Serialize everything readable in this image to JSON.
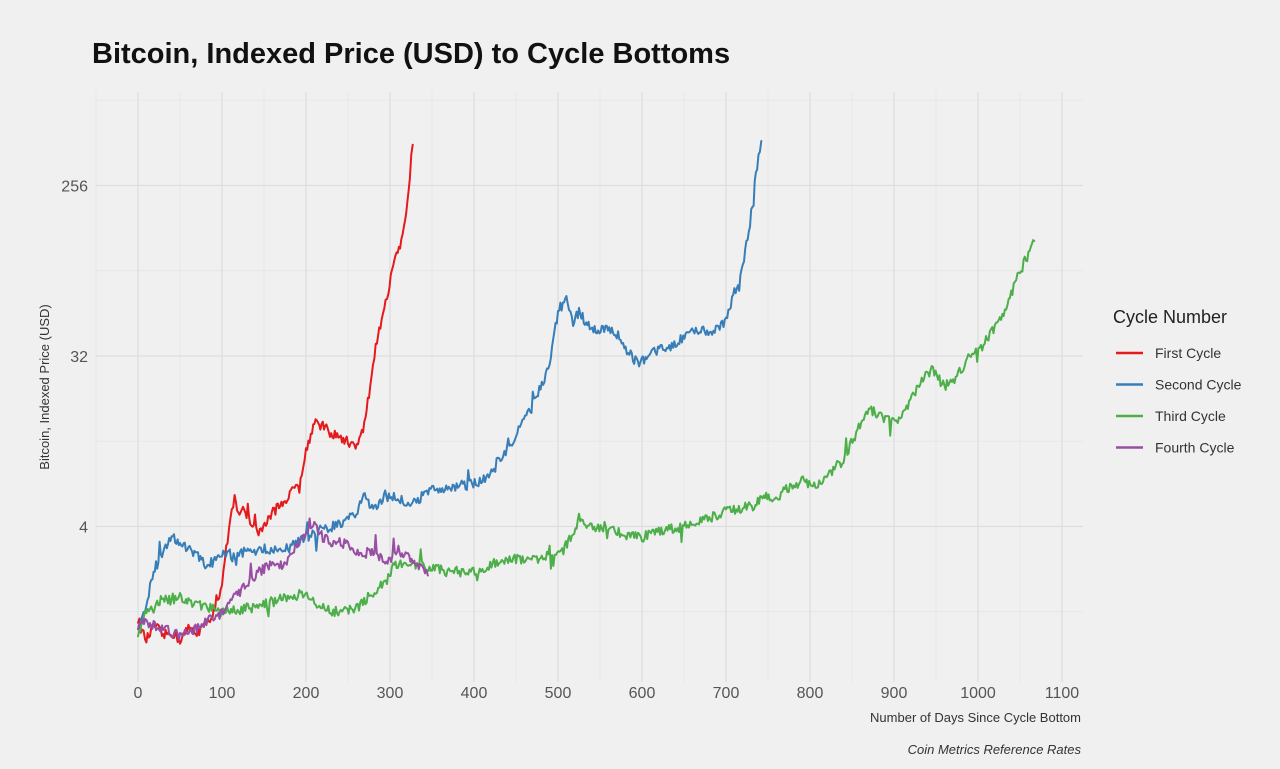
{
  "chart_data": {
    "type": "line",
    "title": "Bitcoin, Indexed Price (USD) to Cycle Bottoms",
    "xlabel": "Number of Days Since Cycle Bottom",
    "ylabel": "Bitcoin, Indexed Price (USD)",
    "caption": "Coin Metrics Reference Rates",
    "x_ticks": [
      0,
      100,
      200,
      300,
      400,
      500,
      600,
      700,
      800,
      900,
      1000,
      1100
    ],
    "y_ticks": [
      4,
      32,
      256
    ],
    "y_scale": "log2",
    "xlim": [
      -50,
      1125
    ],
    "ylim": [
      0.6,
      800
    ],
    "grid": true,
    "legend": {
      "title": "Cycle Number",
      "position": "right"
    },
    "series": [
      {
        "name": "First Cycle",
        "color": "#e41a1c",
        "points": [
          [
            0,
            1.3
          ],
          [
            5,
            1.1
          ],
          [
            10,
            1.0
          ],
          [
            20,
            1.2
          ],
          [
            30,
            1.05
          ],
          [
            40,
            1.1
          ],
          [
            50,
            1.0
          ],
          [
            60,
            1.15
          ],
          [
            70,
            1.1
          ],
          [
            80,
            1.2
          ],
          [
            90,
            1.4
          ],
          [
            95,
            1.6
          ],
          [
            100,
            2.0
          ],
          [
            105,
            3.0
          ],
          [
            110,
            4.3
          ],
          [
            115,
            6.0
          ],
          [
            118,
            4.6
          ],
          [
            125,
            5.2
          ],
          [
            135,
            4.0
          ],
          [
            145,
            3.7
          ],
          [
            155,
            4.4
          ],
          [
            165,
            5.0
          ],
          [
            175,
            5.5
          ],
          [
            185,
            6.2
          ],
          [
            195,
            7.5
          ],
          [
            200,
            10.0
          ],
          [
            210,
            14.5
          ],
          [
            220,
            13.5
          ],
          [
            230,
            12.5
          ],
          [
            240,
            11.8
          ],
          [
            250,
            11.2
          ],
          [
            262,
            10.8
          ],
          [
            268,
            13.0
          ],
          [
            275,
            20.0
          ],
          [
            283,
            36.0
          ],
          [
            290,
            48.0
          ],
          [
            298,
            70.0
          ],
          [
            305,
            100.0
          ],
          [
            312,
            118.0
          ],
          [
            318,
            160.0
          ],
          [
            322,
            250.0
          ],
          [
            327,
            420.0
          ]
        ]
      },
      {
        "name": "Second Cycle",
        "color": "#377eb8",
        "points": [
          [
            0,
            1.2
          ],
          [
            5,
            1.3
          ],
          [
            10,
            1.6
          ],
          [
            20,
            2.4
          ],
          [
            30,
            3.0
          ],
          [
            40,
            3.6
          ],
          [
            50,
            3.3
          ],
          [
            60,
            3.0
          ],
          [
            70,
            2.8
          ],
          [
            80,
            2.5
          ],
          [
            90,
            2.6
          ],
          [
            100,
            2.8
          ],
          [
            120,
            2.9
          ],
          [
            140,
            3.0
          ],
          [
            160,
            3.0
          ],
          [
            180,
            3.1
          ],
          [
            200,
            3.5
          ],
          [
            220,
            3.9
          ],
          [
            240,
            4.1
          ],
          [
            260,
            4.6
          ],
          [
            270,
            5.8
          ],
          [
            280,
            5.0
          ],
          [
            290,
            5.6
          ],
          [
            300,
            5.8
          ],
          [
            320,
            5.4
          ],
          [
            330,
            5.5
          ],
          [
            350,
            6.2
          ],
          [
            370,
            6.5
          ],
          [
            390,
            6.6
          ],
          [
            410,
            7.0
          ],
          [
            430,
            9.0
          ],
          [
            450,
            12.0
          ],
          [
            470,
            18.0
          ],
          [
            490,
            28.0
          ],
          [
            500,
            55.0
          ],
          [
            510,
            65.0
          ],
          [
            518,
            48.0
          ],
          [
            525,
            55.0
          ],
          [
            535,
            46.0
          ],
          [
            545,
            44.0
          ],
          [
            555,
            44.0
          ],
          [
            570,
            42.0
          ],
          [
            585,
            33.0
          ],
          [
            595,
            29.0
          ],
          [
            610,
            33.0
          ],
          [
            625,
            35.0
          ],
          [
            640,
            37.0
          ],
          [
            655,
            42.0
          ],
          [
            670,
            44.0
          ],
          [
            685,
            43.0
          ],
          [
            700,
            48.0
          ],
          [
            710,
            70.0
          ],
          [
            720,
            95.0
          ],
          [
            730,
            180.0
          ],
          [
            737,
            320.0
          ],
          [
            742,
            440.0
          ]
        ]
      },
      {
        "name": "Third Cycle",
        "color": "#4daf4a",
        "points": [
          [
            0,
            1.1
          ],
          [
            10,
            1.4
          ],
          [
            20,
            1.5
          ],
          [
            30,
            1.7
          ],
          [
            40,
            1.6
          ],
          [
            50,
            1.7
          ],
          [
            60,
            1.6
          ],
          [
            80,
            1.5
          ],
          [
            100,
            1.4
          ],
          [
            120,
            1.45
          ],
          [
            140,
            1.5
          ],
          [
            160,
            1.6
          ],
          [
            180,
            1.7
          ],
          [
            195,
            1.75
          ],
          [
            210,
            1.6
          ],
          [
            225,
            1.45
          ],
          [
            240,
            1.4
          ],
          [
            260,
            1.5
          ],
          [
            280,
            1.7
          ],
          [
            295,
            2.0
          ],
          [
            305,
            2.6
          ],
          [
            320,
            2.4
          ],
          [
            335,
            2.6
          ],
          [
            350,
            2.4
          ],
          [
            370,
            2.3
          ],
          [
            390,
            2.3
          ],
          [
            410,
            2.4
          ],
          [
            430,
            2.6
          ],
          [
            450,
            2.7
          ],
          [
            470,
            2.7
          ],
          [
            490,
            2.8
          ],
          [
            505,
            2.9
          ],
          [
            515,
            3.5
          ],
          [
            525,
            4.4
          ],
          [
            540,
            4.0
          ],
          [
            560,
            4.0
          ],
          [
            580,
            3.6
          ],
          [
            600,
            3.5
          ],
          [
            620,
            3.8
          ],
          [
            650,
            4.0
          ],
          [
            680,
            4.4
          ],
          [
            700,
            4.8
          ],
          [
            720,
            5.0
          ],
          [
            735,
            5.2
          ],
          [
            745,
            6.0
          ],
          [
            755,
            5.4
          ],
          [
            770,
            6.2
          ],
          [
            790,
            7.0
          ],
          [
            805,
            6.5
          ],
          [
            820,
            7.5
          ],
          [
            840,
            9.0
          ],
          [
            855,
            12.5
          ],
          [
            870,
            16.5
          ],
          [
            885,
            15.5
          ],
          [
            900,
            14.0
          ],
          [
            915,
            17.0
          ],
          [
            930,
            23.0
          ],
          [
            945,
            27.0
          ],
          [
            960,
            22.0
          ],
          [
            975,
            25.0
          ],
          [
            990,
            32.0
          ],
          [
            1005,
            36.0
          ],
          [
            1020,
            45.0
          ],
          [
            1035,
            60.0
          ],
          [
            1050,
            90.0
          ],
          [
            1060,
            110.0
          ],
          [
            1067,
            130.0
          ]
        ]
      },
      {
        "name": "Fourth Cycle",
        "color": "#984ea3",
        "points": [
          [
            0,
            1.2
          ],
          [
            10,
            1.25
          ],
          [
            20,
            1.2
          ],
          [
            30,
            1.15
          ],
          [
            40,
            1.1
          ],
          [
            50,
            1.05
          ],
          [
            60,
            1.1
          ],
          [
            70,
            1.15
          ],
          [
            80,
            1.25
          ],
          [
            90,
            1.3
          ],
          [
            100,
            1.4
          ],
          [
            110,
            1.6
          ],
          [
            120,
            1.75
          ],
          [
            130,
            2.0
          ],
          [
            140,
            2.2
          ],
          [
            150,
            2.4
          ],
          [
            160,
            2.6
          ],
          [
            170,
            2.5
          ],
          [
            180,
            2.7
          ],
          [
            190,
            3.2
          ],
          [
            200,
            3.8
          ],
          [
            210,
            4.0
          ],
          [
            220,
            3.5
          ],
          [
            230,
            3.3
          ],
          [
            240,
            3.3
          ],
          [
            250,
            3.2
          ],
          [
            260,
            3.0
          ],
          [
            270,
            2.9
          ],
          [
            280,
            2.9
          ],
          [
            290,
            2.7
          ],
          [
            300,
            2.7
          ],
          [
            310,
            3.0
          ],
          [
            320,
            2.8
          ],
          [
            330,
            2.6
          ],
          [
            340,
            2.3
          ],
          [
            345,
            2.2
          ]
        ]
      }
    ]
  }
}
